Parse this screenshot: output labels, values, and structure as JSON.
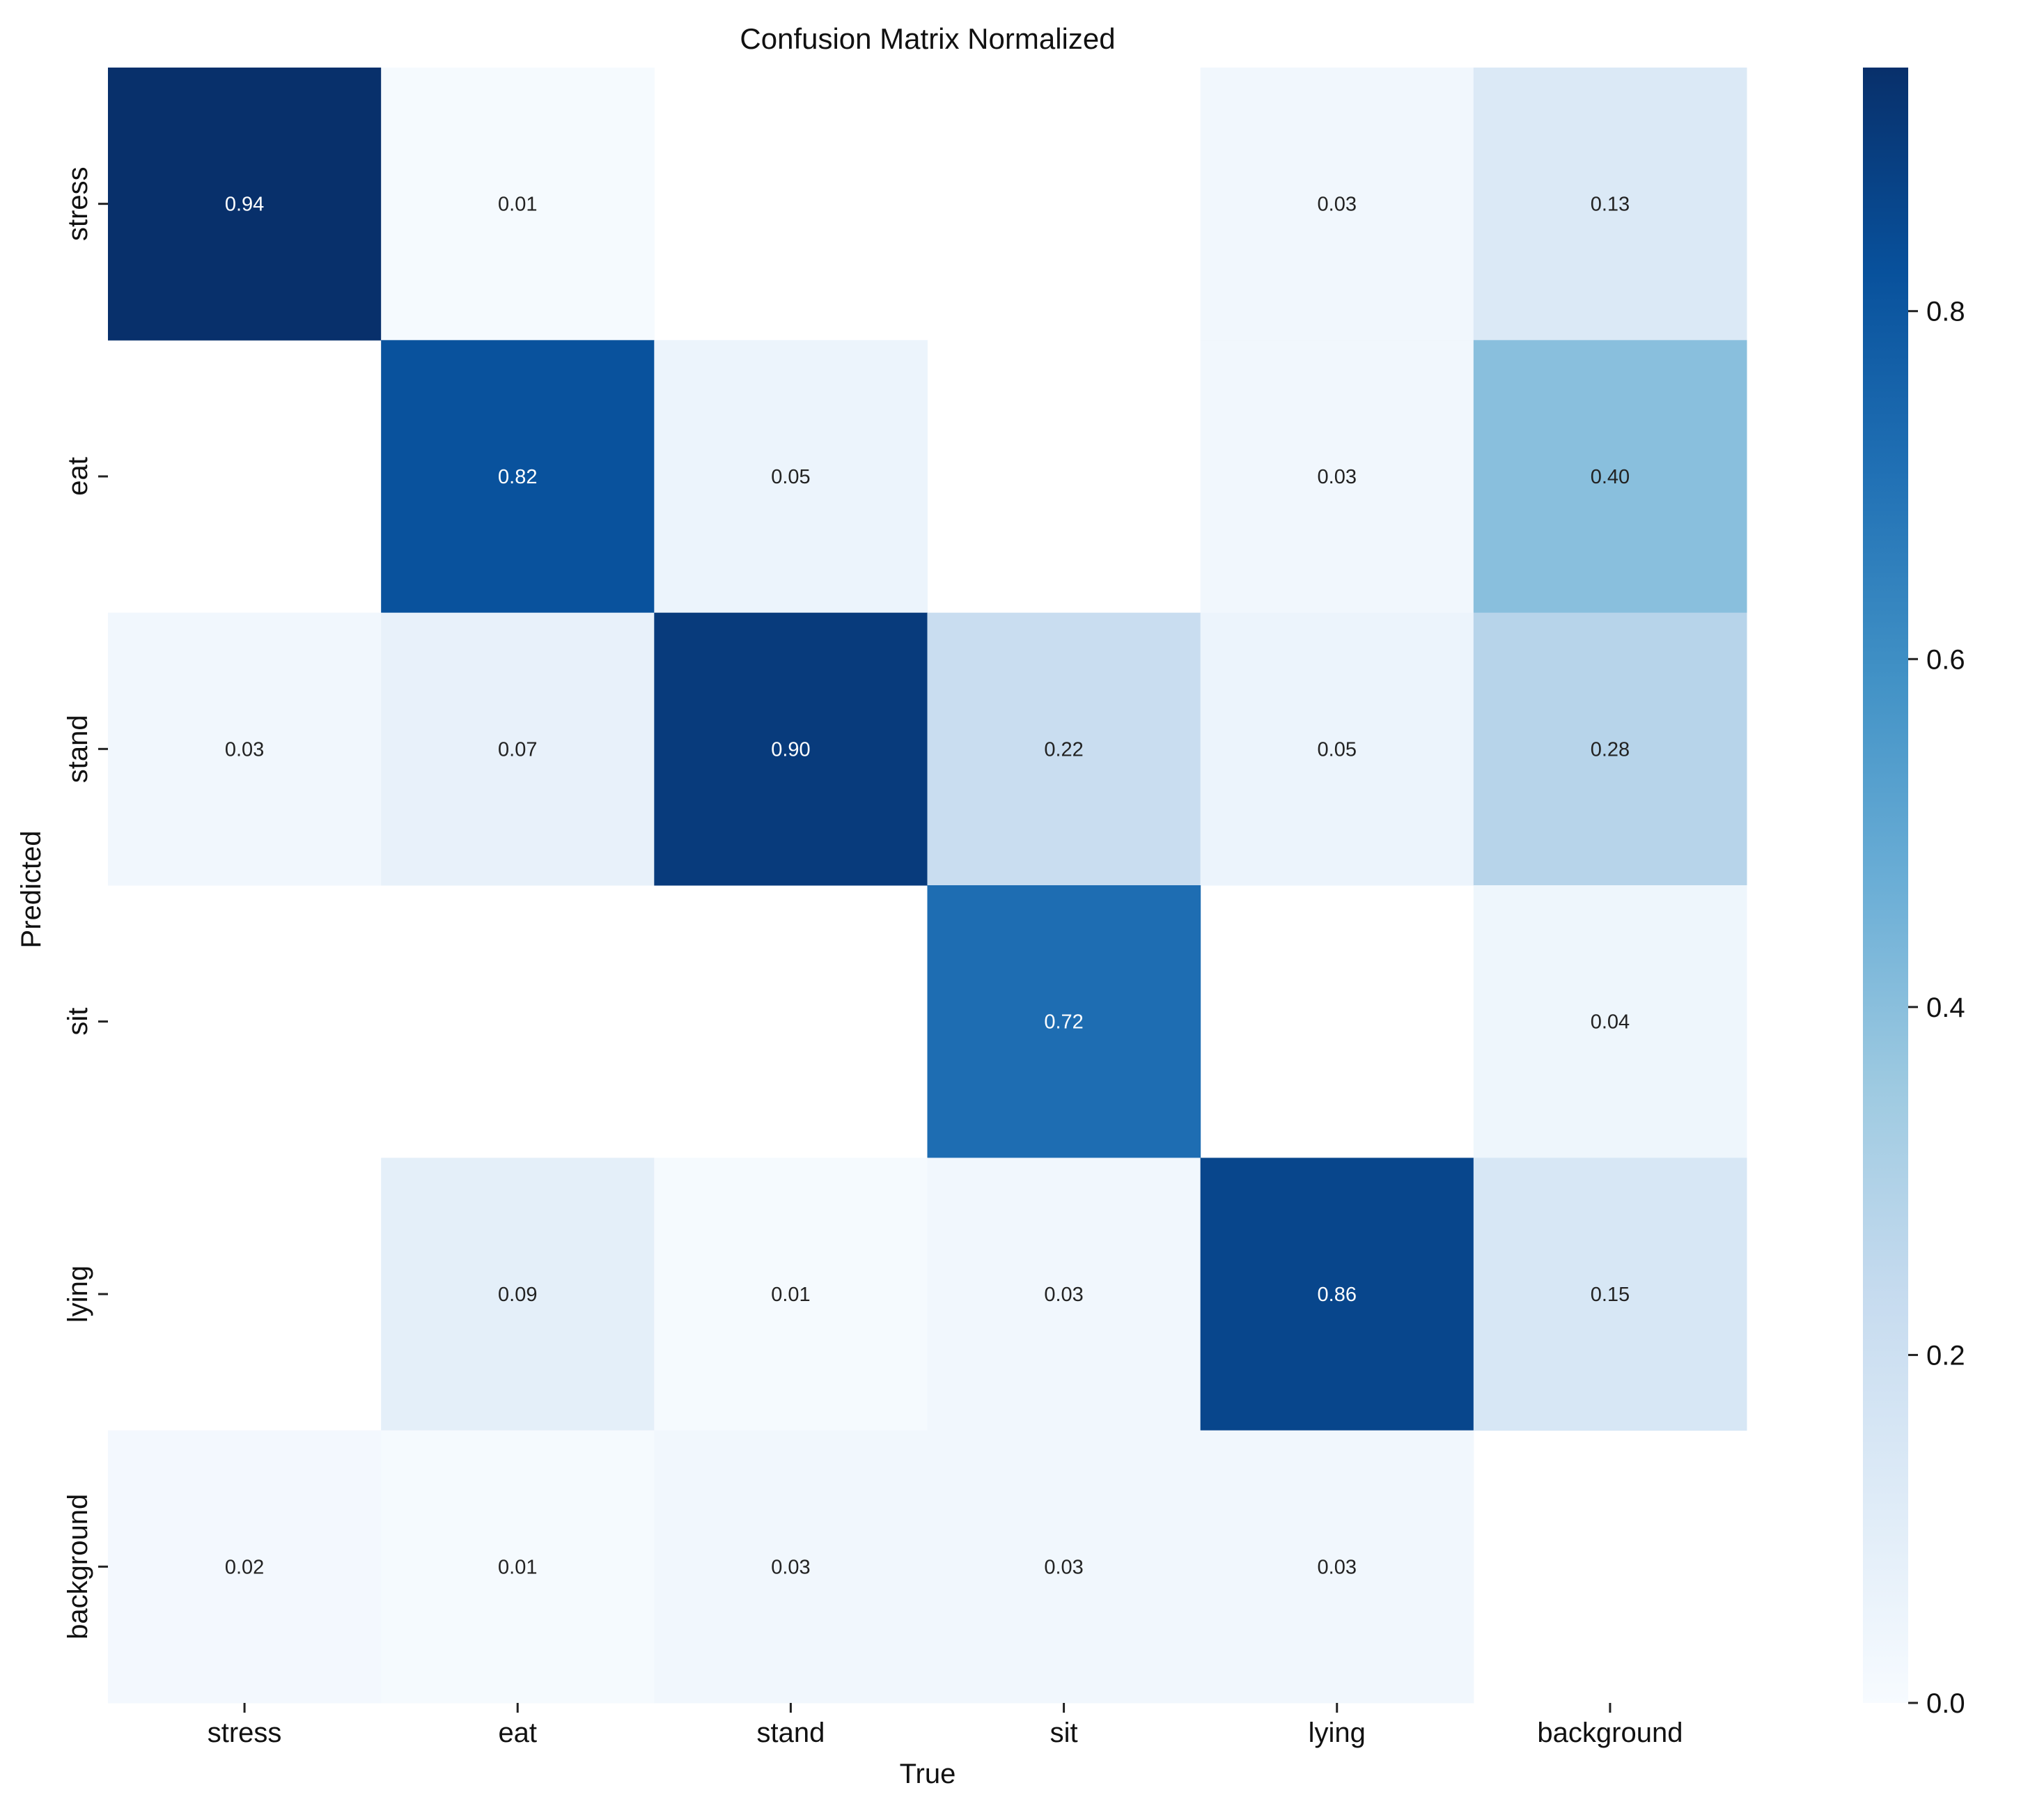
{
  "chart_data": {
    "type": "heatmap",
    "title": "Confusion Matrix Normalized",
    "xlabel": "True",
    "ylabel": "Predicted",
    "x_categories": [
      "stress",
      "eat",
      "stand",
      "sit",
      "lying",
      "background"
    ],
    "y_categories": [
      "stress",
      "eat",
      "stand",
      "sit",
      "lying",
      "background"
    ],
    "values": [
      [
        0.94,
        0.01,
        null,
        null,
        0.03,
        0.13
      ],
      [
        null,
        0.82,
        0.05,
        null,
        0.03,
        0.4
      ],
      [
        0.03,
        0.07,
        0.9,
        0.22,
        0.05,
        0.28
      ],
      [
        null,
        null,
        null,
        0.72,
        null,
        0.04
      ],
      [
        null,
        0.09,
        0.01,
        0.03,
        0.86,
        0.15
      ],
      [
        0.02,
        0.01,
        0.03,
        0.03,
        0.03,
        null
      ]
    ],
    "colorbar": {
      "range": [
        0,
        0.94
      ],
      "ticks": [
        0.0,
        0.2,
        0.4,
        0.6,
        0.8
      ],
      "tick_labels": [
        "0.0",
        "0.2",
        "0.4",
        "0.6",
        "0.8"
      ],
      "colormap": "Blues",
      "colors": [
        "#f7fbff",
        "#deebf7",
        "#c6dbef",
        "#9ecae1",
        "#6baed6",
        "#4292c6",
        "#2171b5",
        "#08519c",
        "#08306b"
      ]
    }
  }
}
